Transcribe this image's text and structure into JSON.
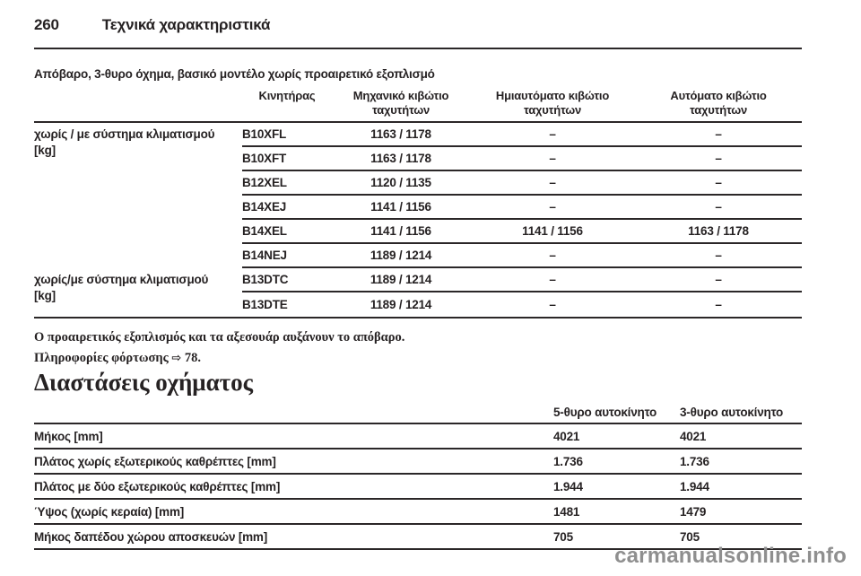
{
  "page": {
    "number": "260",
    "title": "Τεχνικά χαρακτηριστικά"
  },
  "weight_table": {
    "title": "Απόβαρο, 3-θυρο όχημα, βασικό μοντέλο χωρίς προαιρετικό εξοπλισμό",
    "columns": [
      "Κινητήρας",
      "Μηχανικό κιβώτιο ταχυτήτων",
      "Ημιαυτόματο κιβώτιο ταχυτήτων",
      "Αυτόματο κιβώτιο ταχυτήτων"
    ],
    "groups": [
      {
        "label_line1": "χωρίς / με σύστημα κλιματισμού",
        "label_line2": "[kg]"
      },
      {
        "label_line1": "χωρίς/με σύστημα κλιματισμού",
        "label_line2": "[kg]"
      }
    ],
    "rows": [
      {
        "engine": "B10XFL",
        "manual": "1163 / 1178",
        "semi_auto": "–",
        "auto": "–"
      },
      {
        "engine": "B10XFT",
        "manual": "1163 / 1178",
        "semi_auto": "–",
        "auto": "–"
      },
      {
        "engine": "B12XEL",
        "manual": "1120 / 1135",
        "semi_auto": "–",
        "auto": "–"
      },
      {
        "engine": "B14XEJ",
        "manual": "1141 / 1156",
        "semi_auto": "–",
        "auto": "–"
      },
      {
        "engine": "B14XEL",
        "manual": "1141 / 1156",
        "semi_auto": "1141 / 1156",
        "auto": "1163 / 1178"
      },
      {
        "engine": "B14NEJ",
        "manual": "1189 / 1214",
        "semi_auto": "–",
        "auto": "–"
      },
      {
        "engine": "B13DTC",
        "manual": "1189 / 1214",
        "semi_auto": "–",
        "auto": "–"
      },
      {
        "engine": "B13DTE",
        "manual": "1189 / 1214",
        "semi_auto": "–",
        "auto": "–"
      }
    ]
  },
  "notes": {
    "note1": "Ο προαιρετικός εξοπλισμός και τα αξεσουάρ αυξάνουν το απόβαρο.",
    "note2_text": "Πληροφορίες φόρτωσης",
    "ref_symbol": "⇨",
    "note2_page": "78."
  },
  "dimensions": {
    "heading": "Διαστάσεις οχήματος",
    "columns": [
      "5-θυρο αυτοκίνητο",
      "3-θυρο αυτοκίνητο"
    ],
    "rows": [
      {
        "label": "Μήκος [mm]",
        "v5": "4021",
        "v3": "4021"
      },
      {
        "label": "Πλάτος χωρίς εξωτερικούς καθρέπτες [mm]",
        "v5": "1.736",
        "v3": "1.736"
      },
      {
        "label": "Πλάτος με δύο εξωτερικούς καθρέπτες [mm]",
        "v5": "1.944",
        "v3": "1.944"
      },
      {
        "label": "Ύψος (χωρίς κεραία) [mm]",
        "v5": "1481",
        "v3": "1479"
      },
      {
        "label": "Μήκος δαπέδου χώρου αποσκευών [mm]",
        "v5": "705",
        "v3": "705"
      }
    ]
  },
  "watermark": "carmanualsonline.info",
  "colors": {
    "text": "#262223",
    "rule": "#2b2728",
    "watermark_gray": "#8f8f8f"
  }
}
